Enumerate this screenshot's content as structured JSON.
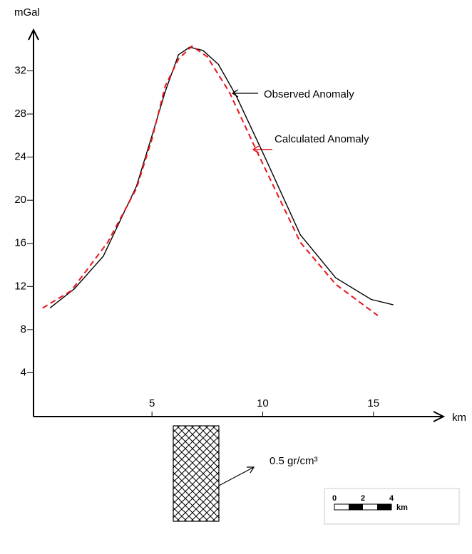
{
  "chart_data": {
    "type": "line",
    "y_label": "mGal",
    "x_label": "km",
    "xlim": [
      -0.35,
      18.1
    ],
    "ylim": [
      0,
      35.8
    ],
    "xticks": [
      5,
      10,
      15
    ],
    "yticks": [
      4,
      8,
      12,
      16,
      20,
      24,
      28,
      32
    ],
    "series": [
      {
        "name": "Observed Anomaly",
        "color": "#000000",
        "dashed": false,
        "x": [
          0.39,
          1.5,
          2.8,
          4.3,
          5,
          5.6,
          6.2,
          6.7,
          7.3,
          8,
          8.8,
          10.1,
          11.7,
          13.3,
          14.9,
          15.9
        ],
        "values": [
          10.0,
          11.8,
          14.8,
          21.3,
          26.0,
          30.1,
          33.5,
          34.2,
          33.9,
          32.6,
          29.7,
          24.0,
          16.8,
          12.8,
          10.8,
          10.3
        ]
      },
      {
        "name": "Calculated Anomaly",
        "color": "#e8141b",
        "dashed": true,
        "x": [
          0.06,
          1.35,
          3.0,
          4.3,
          5,
          5.6,
          6.2,
          6.8,
          7.5,
          8.5,
          9.7,
          11.7,
          13.3,
          15.2
        ],
        "values": [
          10.0,
          11.6,
          16.1,
          21.1,
          25.7,
          30.6,
          33.1,
          34.3,
          33.3,
          30.0,
          24.7,
          16.1,
          12.2,
          9.3
        ]
      }
    ],
    "body_label": "0.5 gr/cm³",
    "scale_bar": {
      "labels": [
        "0",
        "2",
        "4"
      ],
      "unit": "km"
    }
  }
}
